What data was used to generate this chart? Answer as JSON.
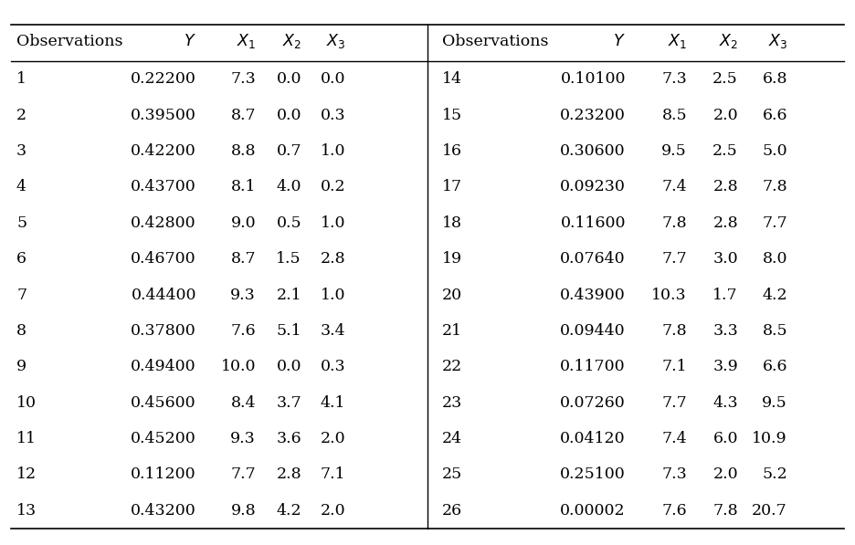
{
  "left_data": [
    [
      "1",
      "0.22200",
      "7.3",
      "0.0",
      "0.0"
    ],
    [
      "2",
      "0.39500",
      "8.7",
      "0.0",
      "0.3"
    ],
    [
      "3",
      "0.42200",
      "8.8",
      "0.7",
      "1.0"
    ],
    [
      "4",
      "0.43700",
      "8.1",
      "4.0",
      "0.2"
    ],
    [
      "5",
      "0.42800",
      "9.0",
      "0.5",
      "1.0"
    ],
    [
      "6",
      "0.46700",
      "8.7",
      "1.5",
      "2.8"
    ],
    [
      "7",
      "0.44400",
      "9.3",
      "2.1",
      "1.0"
    ],
    [
      "8",
      "0.37800",
      "7.6",
      "5.1",
      "3.4"
    ],
    [
      "9",
      "0.49400",
      "10.0",
      "0.0",
      "0.3"
    ],
    [
      "10",
      "0.45600",
      "8.4",
      "3.7",
      "4.1"
    ],
    [
      "11",
      "0.45200",
      "9.3",
      "3.6",
      "2.0"
    ],
    [
      "12",
      "0.11200",
      "7.7",
      "2.8",
      "7.1"
    ],
    [
      "13",
      "0.43200",
      "9.8",
      "4.2",
      "2.0"
    ]
  ],
  "right_data": [
    [
      "14",
      "0.10100",
      "7.3",
      "2.5",
      "6.8"
    ],
    [
      "15",
      "0.23200",
      "8.5",
      "2.0",
      "6.6"
    ],
    [
      "16",
      "0.30600",
      "9.5",
      "2.5",
      "5.0"
    ],
    [
      "17",
      "0.09230",
      "7.4",
      "2.8",
      "7.8"
    ],
    [
      "18",
      "0.11600",
      "7.8",
      "2.8",
      "7.7"
    ],
    [
      "19",
      "0.07640",
      "7.7",
      "3.0",
      "8.0"
    ],
    [
      "20",
      "0.43900",
      "10.3",
      "1.7",
      "4.2"
    ],
    [
      "21",
      "0.09440",
      "7.8",
      "3.3",
      "8.5"
    ],
    [
      "22",
      "0.11700",
      "7.1",
      "3.9",
      "6.6"
    ],
    [
      "23",
      "0.07260",
      "7.7",
      "4.3",
      "9.5"
    ],
    [
      "24",
      "0.04120",
      "7.4",
      "6.0",
      "10.9"
    ],
    [
      "25",
      "0.25100",
      "7.3",
      "2.0",
      "5.2"
    ],
    [
      "26",
      "0.00002",
      "7.6",
      "7.8",
      "20.7"
    ]
  ],
  "bg_color": "#ffffff",
  "text_color": "#000000",
  "line_color": "#000000",
  "fontsize": 12.5
}
